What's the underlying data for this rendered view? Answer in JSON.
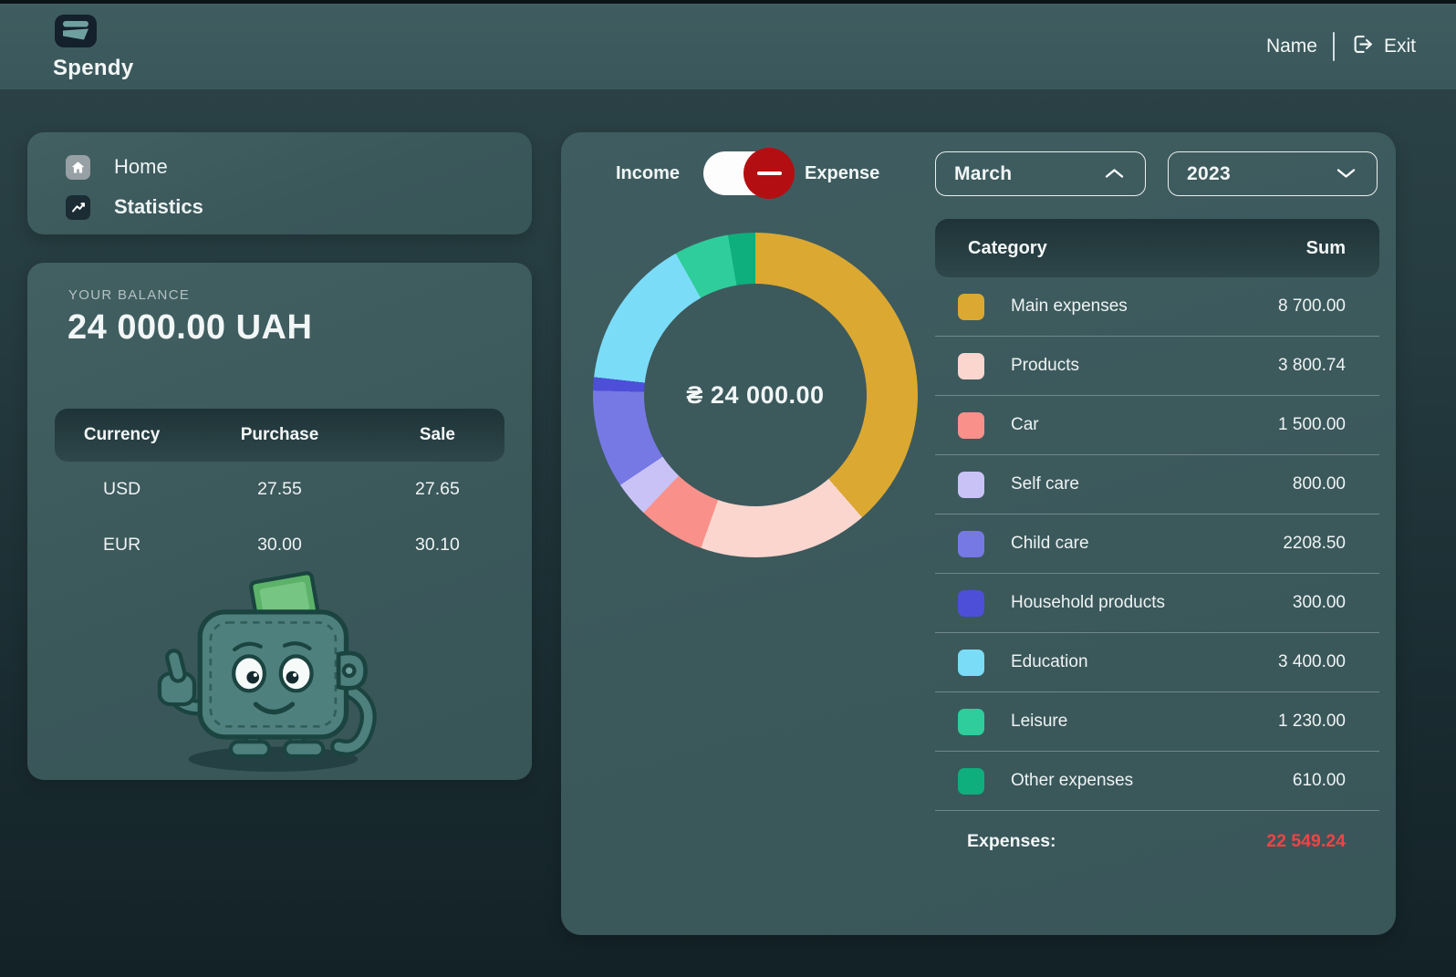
{
  "header": {
    "app_name": "Spendy",
    "user_name": "Name",
    "exit_label": "Exit"
  },
  "sidebar": {
    "items": [
      {
        "label": "Home",
        "icon": "home-icon",
        "active": false
      },
      {
        "label": "Statistics",
        "icon": "statistics-icon",
        "active": true
      }
    ]
  },
  "balance": {
    "label": "YOUR BALANCE",
    "amount": "24 000.00 UAH"
  },
  "currency_table": {
    "headers": [
      "Currency",
      "Purchase",
      "Sale"
    ],
    "rows": [
      [
        "USD",
        "27.55",
        "27.65"
      ],
      [
        "EUR",
        "30.00",
        "30.10"
      ]
    ]
  },
  "filters": {
    "toggle": {
      "left": "Income",
      "right": "Expense",
      "selected": "Expense"
    },
    "month": "March",
    "year": "2023"
  },
  "chart_data": {
    "type": "pie",
    "subtype": "donut",
    "title": "",
    "center_label": "₴ 24 000.00",
    "categories": [
      "Main expenses",
      "Products",
      "Car",
      "Self care",
      "Child care",
      "Household products",
      "Education",
      "Leisure",
      "Other expenses"
    ],
    "values": [
      8700.0,
      3800.74,
      1500.0,
      800.0,
      2208.5,
      300.0,
      3400.0,
      1230.0,
      610.0
    ],
    "colors": [
      "#DBA832",
      "#FAD6CE",
      "#F9918A",
      "#C9C2F6",
      "#7679E4",
      "#4D4FD8",
      "#7BDCF8",
      "#2FCD9B",
      "#0FAE7D"
    ],
    "total": 22549.24,
    "start_angle_deg": 0,
    "direction": "clockwise",
    "legend_position": "right-table"
  },
  "category_table": {
    "headers": [
      "Category",
      "Sum"
    ],
    "rows": [
      {
        "label": "Main expenses",
        "sum": "8 700.00",
        "color": "#DBA832"
      },
      {
        "label": "Products",
        "sum": "3 800.74",
        "color": "#FAD6CE"
      },
      {
        "label": "Car",
        "sum": "1 500.00",
        "color": "#F9918A"
      },
      {
        "label": "Self care",
        "sum": "800.00",
        "color": "#C9C2F6"
      },
      {
        "label": "Child care",
        "sum": "2208.50",
        "color": "#7679E4"
      },
      {
        "label": "Household products",
        "sum": "300.00",
        "color": "#4D4FD8"
      },
      {
        "label": "Education",
        "sum": "3 400.00",
        "color": "#7BDCF8"
      },
      {
        "label": "Leisure",
        "sum": "1 230.00",
        "color": "#2FCD9B"
      },
      {
        "label": "Other expenses",
        "sum": "610.00",
        "color": "#0FAE7D"
      }
    ],
    "total_label": "Expenses:",
    "total_value": "22 549.24"
  },
  "colors": {
    "toggle_knob_red": "#B30F12",
    "total_red": "#EF4444",
    "panel_bg": "#3C595C",
    "header_bg": "#3D5B5E"
  }
}
